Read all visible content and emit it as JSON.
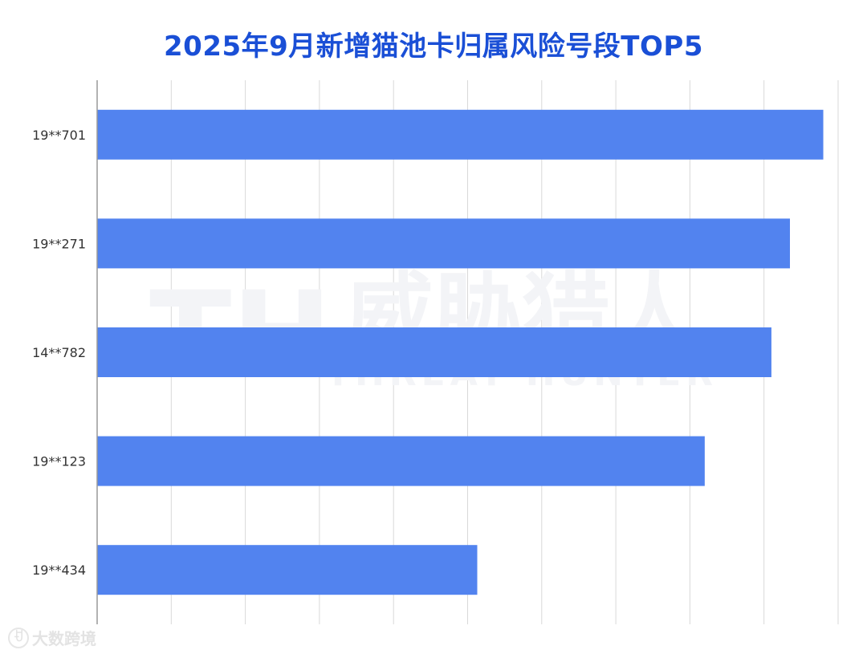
{
  "chart_data": {
    "type": "bar",
    "orientation": "horizontal",
    "title": "2025年9月新增猫池卡归属风险号段TOP5",
    "categories": [
      "19**701",
      "19**271",
      "14**782",
      "19**123",
      "19**434"
    ],
    "values": [
      98,
      93.5,
      91,
      82,
      51.3
    ],
    "xlim": [
      0,
      100
    ],
    "grid": true,
    "bar_color": "#5283ef"
  },
  "watermark": {
    "cn": "威胁猎人",
    "en": "THREAT HUNTER",
    "mark": "TH"
  },
  "footer_brand": {
    "logo": "ꀀ",
    "text": "大数跨境"
  },
  "colors": {
    "title": "#1a4fd6",
    "grid": "#d9d9d9",
    "axis": "#999999",
    "label": "#333333"
  }
}
